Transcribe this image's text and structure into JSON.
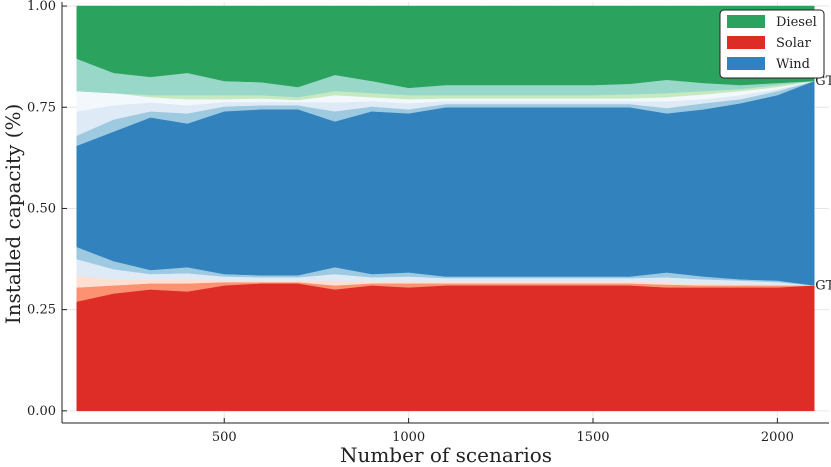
{
  "chart_data": {
    "type": "area",
    "xlabel": "Number of scenarios",
    "ylabel": "Installed capacity (%)",
    "xlim": [
      60,
      2140
    ],
    "ylim": [
      -0.03,
      1.01
    ],
    "xticks": [
      500,
      1000,
      1500,
      2000
    ],
    "yticks": [
      0.0,
      0.25,
      0.5,
      0.75,
      1.0
    ],
    "ytick_labels": [
      "0.00",
      "0.25",
      "0.50",
      "0.75",
      "1.00"
    ],
    "grid": true,
    "legend": {
      "position": "top-right",
      "entries": [
        {
          "name": "Diesel",
          "color": "#2ca25f"
        },
        {
          "name": "Solar",
          "color": "#de2d26"
        },
        {
          "name": "Wind",
          "color": "#3182bd"
        }
      ]
    },
    "annotations": [
      {
        "text": "GT",
        "x": 2100,
        "y": 0.815
      },
      {
        "text": "GT",
        "x": 2100,
        "y": 0.31
      }
    ],
    "x": [
      100,
      200,
      300,
      400,
      500,
      600,
      700,
      800,
      900,
      1000,
      1100,
      1200,
      1300,
      1400,
      1500,
      1600,
      1700,
      1800,
      1900,
      2000,
      2100
    ],
    "series": [
      {
        "name": "Solar",
        "role": "median",
        "color": "#de2d26",
        "values": [
          0.27,
          0.29,
          0.3,
          0.295,
          0.31,
          0.315,
          0.315,
          0.3,
          0.31,
          0.305,
          0.31,
          0.31,
          0.31,
          0.31,
          0.31,
          0.31,
          0.305,
          0.305,
          0.305,
          0.305,
          0.31
        ]
      },
      {
        "name": "",
        "role": "band",
        "color": "#fc9272",
        "values": [
          0.305,
          0.31,
          0.315,
          0.315,
          0.318,
          0.318,
          0.318,
          0.31,
          0.315,
          0.315,
          0.315,
          0.315,
          0.315,
          0.315,
          0.315,
          0.315,
          0.312,
          0.31,
          0.31,
          0.31,
          0.31
        ]
      },
      {
        "name": "",
        "role": "band",
        "color": "#fee0d2",
        "values": [
          0.335,
          0.325,
          0.325,
          0.325,
          0.322,
          0.322,
          0.322,
          0.322,
          0.32,
          0.32,
          0.32,
          0.32,
          0.32,
          0.32,
          0.32,
          0.32,
          0.318,
          0.315,
          0.313,
          0.312,
          0.31
        ]
      },
      {
        "name": "",
        "role": "band",
        "color": "#deebf7",
        "values": [
          0.375,
          0.35,
          0.338,
          0.34,
          0.332,
          0.33,
          0.33,
          0.338,
          0.33,
          0.332,
          0.328,
          0.328,
          0.328,
          0.328,
          0.328,
          0.328,
          0.33,
          0.325,
          0.322,
          0.318,
          0.31
        ]
      },
      {
        "name": "",
        "role": "band",
        "color": "#9ecae1",
        "values": [
          0.405,
          0.37,
          0.348,
          0.355,
          0.338,
          0.335,
          0.335,
          0.355,
          0.338,
          0.342,
          0.332,
          0.332,
          0.332,
          0.332,
          0.332,
          0.332,
          0.342,
          0.332,
          0.325,
          0.322,
          0.31
        ]
      },
      {
        "name": "Wind",
        "role": "median",
        "color": "#3182bd",
        "values": [
          0.655,
          0.69,
          0.725,
          0.71,
          0.74,
          0.745,
          0.745,
          0.715,
          0.74,
          0.735,
          0.75,
          0.75,
          0.75,
          0.75,
          0.75,
          0.75,
          0.735,
          0.745,
          0.76,
          0.78,
          0.815
        ]
      },
      {
        "name": "",
        "role": "band",
        "color": "#9ecae1",
        "values": [
          0.68,
          0.72,
          0.74,
          0.735,
          0.752,
          0.755,
          0.755,
          0.74,
          0.752,
          0.745,
          0.758,
          0.758,
          0.758,
          0.758,
          0.758,
          0.758,
          0.748,
          0.76,
          0.77,
          0.79,
          0.815
        ]
      },
      {
        "name": "",
        "role": "band",
        "color": "#deebf7",
        "values": [
          0.74,
          0.755,
          0.762,
          0.755,
          0.763,
          0.763,
          0.763,
          0.762,
          0.765,
          0.76,
          0.765,
          0.765,
          0.765,
          0.765,
          0.765,
          0.765,
          0.765,
          0.77,
          0.78,
          0.795,
          0.815
        ]
      },
      {
        "name": "",
        "role": "band",
        "color": "#f3f8fc",
        "values": [
          0.79,
          0.785,
          0.775,
          0.77,
          0.77,
          0.772,
          0.768,
          0.78,
          0.775,
          0.77,
          0.772,
          0.772,
          0.772,
          0.772,
          0.772,
          0.772,
          0.775,
          0.782,
          0.79,
          0.8,
          0.815
        ]
      },
      {
        "name": "",
        "role": "band",
        "color": "#c7e9c0",
        "values": [
          0.79,
          0.785,
          0.78,
          0.78,
          0.78,
          0.78,
          0.775,
          0.79,
          0.785,
          0.78,
          0.78,
          0.78,
          0.78,
          0.78,
          0.78,
          0.782,
          0.785,
          0.79,
          0.795,
          0.805,
          0.815
        ]
      },
      {
        "name": "",
        "role": "band",
        "color": "#99d8c9",
        "values": [
          0.87,
          0.835,
          0.825,
          0.835,
          0.815,
          0.812,
          0.8,
          0.83,
          0.815,
          0.798,
          0.805,
          0.805,
          0.805,
          0.805,
          0.805,
          0.808,
          0.818,
          0.81,
          0.805,
          0.81,
          0.815
        ]
      },
      {
        "name": "Diesel",
        "role": "median",
        "color": "#2ca25f",
        "values": [
          1.0,
          1.0,
          1.0,
          1.0,
          1.0,
          1.0,
          1.0,
          1.0,
          1.0,
          1.0,
          1.0,
          1.0,
          1.0,
          1.0,
          1.0,
          1.0,
          1.0,
          1.0,
          1.0,
          1.0,
          1.0
        ]
      }
    ]
  }
}
